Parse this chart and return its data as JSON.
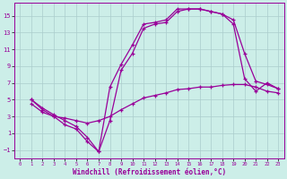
{
  "xlabel": "Windchill (Refroidissement éolien,°C)",
  "bg_color": "#cceee8",
  "grid_color": "#aacccc",
  "line_color": "#990099",
  "xlim": [
    -0.5,
    23.5
  ],
  "ylim": [
    -2,
    16.5
  ],
  "xticks": [
    0,
    1,
    2,
    3,
    4,
    5,
    6,
    7,
    8,
    9,
    10,
    11,
    12,
    13,
    14,
    15,
    16,
    17,
    18,
    19,
    20,
    21,
    22,
    23
  ],
  "yticks": [
    -1,
    1,
    3,
    5,
    7,
    9,
    11,
    13,
    15
  ],
  "line1_x": [
    1,
    2,
    3,
    4,
    5,
    6,
    7,
    8,
    9,
    10,
    11,
    12,
    13,
    14,
    15,
    16,
    17,
    18,
    19,
    20,
    21,
    22,
    23
  ],
  "line1_y": [
    5.0,
    4.0,
    3.2,
    2.5,
    1.8,
    0.5,
    -1.2,
    6.5,
    9.2,
    11.5,
    14.0,
    14.2,
    14.5,
    15.8,
    15.8,
    15.8,
    15.5,
    15.2,
    14.5,
    10.5,
    7.2,
    6.8,
    6.3
  ],
  "line2_x": [
    1,
    2,
    3,
    4,
    5,
    6,
    7,
    8,
    9,
    10,
    11,
    12,
    13,
    14,
    15,
    16,
    17,
    18,
    19,
    20,
    21,
    22,
    23
  ],
  "line2_y": [
    5.0,
    3.8,
    3.0,
    2.0,
    1.5,
    0.0,
    -1.2,
    2.5,
    8.5,
    10.5,
    13.5,
    14.0,
    14.2,
    15.5,
    15.8,
    15.8,
    15.5,
    15.2,
    14.0,
    7.5,
    6.0,
    7.0,
    6.3
  ],
  "line3_x": [
    1,
    2,
    3,
    4,
    5,
    6,
    7,
    8,
    9,
    10,
    11,
    12,
    13,
    14,
    15,
    16,
    17,
    18,
    19,
    20,
    21,
    22,
    23
  ],
  "line3_y": [
    4.5,
    3.5,
    3.0,
    2.8,
    2.5,
    2.2,
    2.5,
    3.0,
    3.8,
    4.5,
    5.2,
    5.5,
    5.8,
    6.2,
    6.3,
    6.5,
    6.5,
    6.7,
    6.8,
    6.8,
    6.5,
    6.0,
    5.8
  ]
}
